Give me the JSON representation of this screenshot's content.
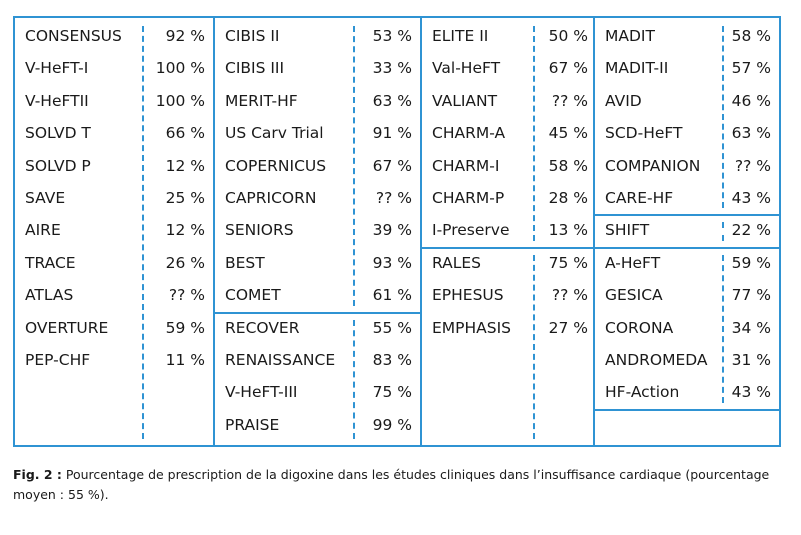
{
  "table": {
    "columns": [
      {
        "groups": [
          {
            "rows": [
              {
                "name": "CONSENSUS",
                "pct": "92 %"
              },
              {
                "name": "V-HeFT-I",
                "pct": "100 %"
              },
              {
                "name": "V-HeFTII",
                "pct": "100 %"
              },
              {
                "name": "SOLVD T",
                "pct": "66 %"
              },
              {
                "name": "SOLVD P",
                "pct": "12 %"
              },
              {
                "name": "SAVE",
                "pct": "25 %"
              },
              {
                "name": "AIRE",
                "pct": "12 %"
              },
              {
                "name": "TRACE",
                "pct": "26 %"
              },
              {
                "name": "ATLAS",
                "pct": "?? %"
              },
              {
                "name": "OVERTURE",
                "pct": "59 %"
              },
              {
                "name": "PEP-CHF",
                "pct": "11 %"
              }
            ]
          }
        ]
      },
      {
        "groups": [
          {
            "rows": [
              {
                "name": "CIBIS II",
                "pct": "53 %"
              },
              {
                "name": "CIBIS III",
                "pct": "33 %"
              },
              {
                "name": "MERIT-HF",
                "pct": "63 %"
              },
              {
                "name": "US Carv Trial",
                "pct": "91 %"
              },
              {
                "name": "COPERNICUS",
                "pct": "67 %"
              },
              {
                "name": "CAPRICORN",
                "pct": "?? %"
              },
              {
                "name": "SENIORS",
                "pct": "39 %"
              },
              {
                "name": "BEST",
                "pct": "93 %"
              },
              {
                "name": "COMET",
                "pct": "61 %"
              }
            ]
          },
          {
            "rows": [
              {
                "name": "RECOVER",
                "pct": "55 %"
              },
              {
                "name": "RENAISSANCE",
                "pct": "83 %"
              },
              {
                "name": "V-HeFT-III",
                "pct": "75 %"
              },
              {
                "name": "PRAISE",
                "pct": "99 %"
              }
            ]
          }
        ]
      },
      {
        "groups": [
          {
            "rows": [
              {
                "name": "ELITE II",
                "pct": "50 %"
              },
              {
                "name": "Val-HeFT",
                "pct": "67 %"
              },
              {
                "name": "VALIANT",
                "pct": "?? %"
              },
              {
                "name": "CHARM-A",
                "pct": "45 %"
              },
              {
                "name": "CHARM-I",
                "pct": "58 %"
              },
              {
                "name": "CHARM-P",
                "pct": "28 %"
              },
              {
                "name": "I-Preserve",
                "pct": "13 %"
              }
            ]
          },
          {
            "rows": [
              {
                "name": "RALES",
                "pct": "75 %"
              },
              {
                "name": "EPHESUS",
                "pct": "?? %"
              },
              {
                "name": "EMPHASIS",
                "pct": "27 %"
              }
            ]
          }
        ]
      },
      {
        "groups": [
          {
            "rows": [
              {
                "name": "MADIT",
                "pct": "58 %"
              },
              {
                "name": "MADIT-II",
                "pct": "57 %"
              },
              {
                "name": "AVID",
                "pct": "46 %"
              },
              {
                "name": "SCD-HeFT",
                "pct": "63 %"
              },
              {
                "name": "COMPANION",
                "pct": "?? %"
              },
              {
                "name": "CARE-HF",
                "pct": "43 %"
              }
            ]
          },
          {
            "rows": [
              {
                "name": "SHIFT",
                "pct": "22 %"
              }
            ]
          },
          {
            "rows": [
              {
                "name": "A-HeFT",
                "pct": "59 %"
              },
              {
                "name": "GESICA",
                "pct": "77 %"
              },
              {
                "name": "CORONA",
                "pct": "34 %"
              },
              {
                "name": "ANDROMEDA",
                "pct": "31 %"
              },
              {
                "name": "HF-Action",
                "pct": "43 %"
              }
            ]
          },
          {
            "rows": []
          }
        ]
      }
    ]
  },
  "caption": {
    "label": "Fig. 2 :",
    "text": " Pourcentage de prescription de la digoxine dans les études cliniques dans l’insuffisance cardiaque (pourcentage moyen : 55 %)."
  },
  "colors": {
    "border": "#2f93d3",
    "text": "#1a1a1a"
  }
}
